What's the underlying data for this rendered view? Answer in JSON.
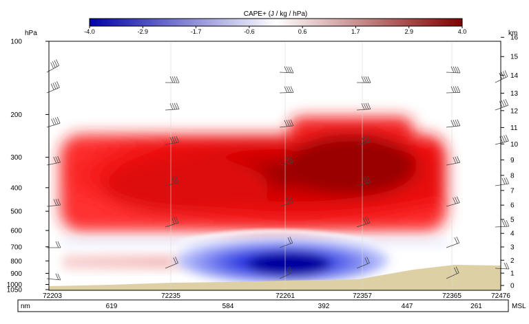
{
  "chart_data": {
    "type": "heatmap",
    "title": "",
    "colorbar": {
      "label": "CAPE+ (J / kg / hPa)",
      "ticks": [
        "-4.0",
        "-2.9",
        "-1.7",
        "-0.6",
        "0.6",
        "1.7",
        "2.9",
        "4.0"
      ],
      "range": [
        -4.0,
        4.0
      ],
      "colors": {
        "low": "#0000a8",
        "mid": "#ffffff",
        "high": "#800000"
      }
    },
    "left_axis": {
      "unit": "hPa",
      "ticks": [
        100,
        200,
        300,
        400,
        500,
        600,
        700,
        800,
        900,
        1000,
        1050
      ],
      "scale": "log"
    },
    "right_axis": {
      "unit": "km",
      "ticks": [
        0,
        1,
        2,
        3,
        4,
        5,
        6,
        7,
        8,
        9,
        10,
        11,
        12,
        13,
        14,
        15,
        16
      ]
    },
    "stations": [
      "72203",
      "72235",
      "72261",
      "72357",
      "72365",
      "72476"
    ],
    "distance_bar": {
      "left_label": "nm",
      "right_label": "MSL",
      "values": [
        "619",
        "584",
        "392",
        "447",
        "261"
      ]
    },
    "terrain_color": "#ddd0a4",
    "features": [
      {
        "name": "positive-core",
        "value": 3.2,
        "p_top": 220,
        "p_bottom": 560
      },
      {
        "name": "negative-core",
        "value": -3.8,
        "p_top": 680,
        "p_bottom": 960
      },
      {
        "name": "weak-positive-low",
        "value": 1.0,
        "p_top": 780,
        "p_bottom": 860
      }
    ]
  }
}
